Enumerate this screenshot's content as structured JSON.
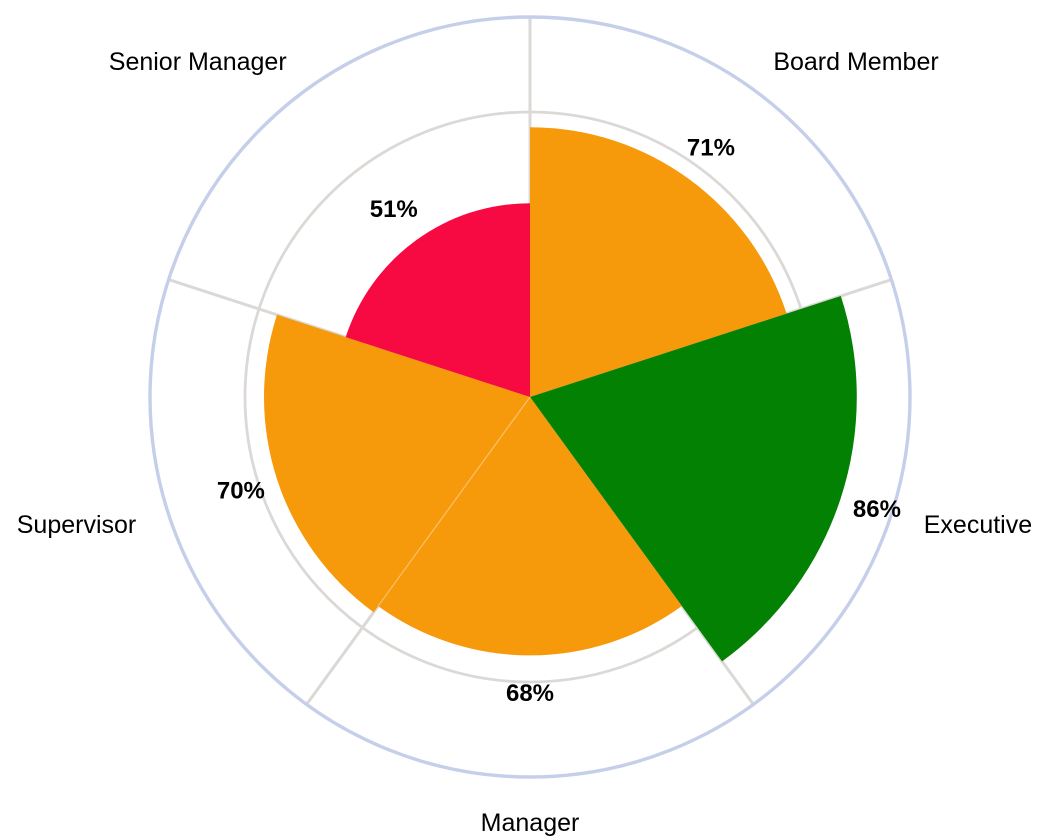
{
  "page": {
    "background": "#FFFFFF"
  },
  "chart_data": {
    "type": "pie",
    "variant": "polar-area-rose (equal 72-degree sectors, radius proportional to value)",
    "title": "",
    "categories": [
      "Board Member",
      "Executive",
      "Manager",
      "Supervisor",
      "Senior Manager"
    ],
    "values": [
      71,
      86,
      68,
      70,
      51
    ],
    "value_labels": [
      "71%",
      "86%",
      "68%",
      "70%",
      "51%"
    ],
    "slice_colors": [
      "#F6990A",
      "#038103",
      "#F6990A",
      "#F6990A",
      "#F70A42"
    ],
    "angle_start_deg": 0,
    "angle_per_category_deg": 72,
    "direction": "clockwise",
    "radial_axis": {
      "min": 0,
      "max": 100,
      "major_unit": 25,
      "gridlines": true
    },
    "legend": "none",
    "colors": {
      "orange": "#F6990A",
      "green": "#038103",
      "crimson": "#F70A42",
      "gridline": "#DBD8D5",
      "outer_ring": "#C6CFE9",
      "label": "#000000",
      "background": "#FFFFFF"
    }
  }
}
